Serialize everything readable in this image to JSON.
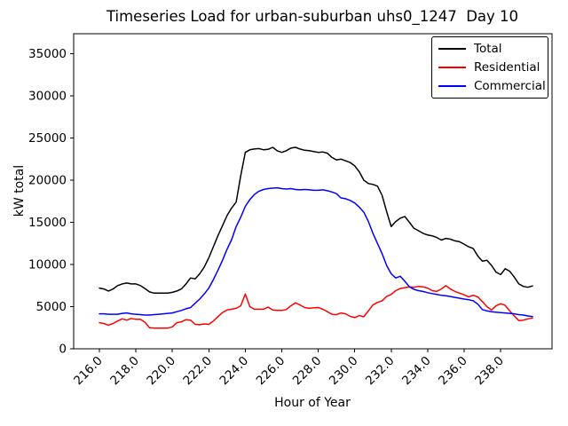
{
  "window": {
    "background": "#ffffff"
  },
  "chart_data": {
    "type": "line",
    "title": "Timeseries Load for urban-suburban uhs0_1247  Day 10",
    "xlabel": "Hour of Year",
    "ylabel": "kW total",
    "grid": false,
    "legend_position": "upper right",
    "xlim": [
      214.59,
      240.82
    ],
    "ylim": [
      0,
      37370
    ],
    "x_ticks": [
      216,
      218,
      220,
      222,
      224,
      226,
      228,
      230,
      232,
      234,
      236,
      238
    ],
    "x_tick_labels": [
      "216.0",
      "218.0",
      "220.0",
      "222.0",
      "224.0",
      "226.0",
      "228.0",
      "230.0",
      "232.0",
      "234.0",
      "236.0",
      "238.0"
    ],
    "x_tick_rotation_deg": 45,
    "y_ticks": [
      0,
      5000,
      10000,
      15000,
      20000,
      25000,
      30000,
      35000
    ],
    "y_tick_labels": [
      "0",
      "5000",
      "10000",
      "15000",
      "20000",
      "25000",
      "30000",
      "35000"
    ],
    "x_start": 216.0,
    "x_step": 0.25,
    "x_end": 239.75,
    "series": [
      {
        "name": "Total",
        "color": "#000000",
        "values": [
          7200,
          7100,
          6850,
          7100,
          7500,
          7700,
          7800,
          7700,
          7700,
          7500,
          7150,
          6750,
          6600,
          6600,
          6600,
          6600,
          6700,
          6850,
          7100,
          7700,
          8400,
          8300,
          8900,
          9700,
          10800,
          12100,
          13400,
          14600,
          15800,
          16700,
          17400,
          20500,
          23300,
          23600,
          23700,
          23750,
          23600,
          23650,
          23900,
          23500,
          23300,
          23500,
          23800,
          23900,
          23700,
          23550,
          23500,
          23400,
          23300,
          23350,
          23200,
          22700,
          22400,
          22500,
          22300,
          22100,
          21700,
          21000,
          20000,
          19600,
          19500,
          19300,
          18200,
          16300,
          14500,
          15100,
          15500,
          15700,
          15000,
          14300,
          14000,
          13700,
          13500,
          13400,
          13200,
          12900,
          13100,
          13000,
          12800,
          12700,
          12400,
          12100,
          11900,
          11000,
          10400,
          10500,
          9900,
          9100,
          8800,
          9500,
          9200,
          8500,
          7700,
          7400,
          7300,
          7450
        ]
      },
      {
        "name": "Residential",
        "color": "#ff0000",
        "values": [
          3100,
          3000,
          2800,
          3000,
          3300,
          3550,
          3400,
          3600,
          3500,
          3500,
          3150,
          2500,
          2450,
          2450,
          2450,
          2450,
          2600,
          3100,
          3200,
          3450,
          3400,
          2900,
          2850,
          2950,
          2900,
          3300,
          3800,
          4300,
          4600,
          4700,
          4800,
          5100,
          6500,
          5000,
          4700,
          4700,
          4700,
          4950,
          4600,
          4550,
          4550,
          4650,
          5100,
          5450,
          5200,
          4900,
          4800,
          4850,
          4900,
          4700,
          4400,
          4100,
          4050,
          4250,
          4150,
          3850,
          3700,
          3950,
          3800,
          4500,
          5200,
          5500,
          5700,
          6200,
          6450,
          6900,
          7150,
          7250,
          7350,
          7300,
          7400,
          7350,
          7200,
          6900,
          6800,
          7100,
          7500,
          7100,
          6800,
          6600,
          6400,
          6150,
          6350,
          6150,
          5600,
          5000,
          4600,
          5100,
          5350,
          5150,
          4500,
          3900,
          3350,
          3400,
          3550,
          3650
        ]
      },
      {
        "name": "Commercial",
        "color": "#0000ff",
        "values": [
          4150,
          4150,
          4100,
          4100,
          4100,
          4200,
          4250,
          4150,
          4100,
          4050,
          4000,
          4000,
          4050,
          4100,
          4150,
          4200,
          4250,
          4400,
          4550,
          4750,
          4900,
          5400,
          5900,
          6500,
          7200,
          8200,
          9300,
          10500,
          11800,
          12950,
          14500,
          15600,
          16900,
          17700,
          18300,
          18700,
          18900,
          19000,
          19050,
          19100,
          19000,
          18950,
          19000,
          18900,
          18850,
          18900,
          18850,
          18800,
          18800,
          18850,
          18750,
          18600,
          18400,
          17900,
          17800,
          17600,
          17300,
          16800,
          16200,
          15100,
          13700,
          12500,
          11300,
          9900,
          8900,
          8400,
          8600,
          8000,
          7350,
          7050,
          6900,
          6800,
          6650,
          6550,
          6450,
          6350,
          6280,
          6200,
          6100,
          6000,
          5900,
          5820,
          5700,
          5300,
          4650,
          4500,
          4400,
          4350,
          4300,
          4250,
          4200,
          4150,
          4050,
          4000,
          3900,
          3820
        ]
      }
    ]
  }
}
